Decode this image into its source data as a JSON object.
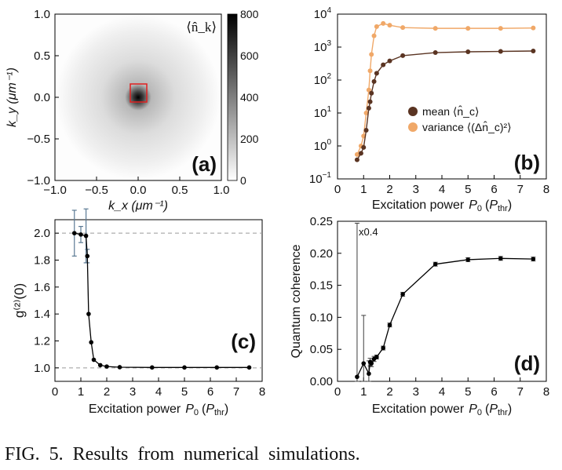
{
  "figure": {
    "caption": "FIG. 5.   Results from numerical simulations."
  },
  "chart_data": [
    {
      "type": "heatmap",
      "panel_label": "(a)",
      "description_label": "⟨n̂_k⟩",
      "xlabel": "k_x (μm⁻¹)",
      "ylabel": "k_y (μm⁻¹)",
      "xlim": [
        -1.0,
        1.0
      ],
      "ylim": [
        -1.0,
        1.0
      ],
      "xticks": [
        "−1.0",
        "−0.5",
        "0.0",
        "0.5",
        "1.0"
      ],
      "yticks": [
        "−1.0",
        "−0.5",
        "0.0",
        "0.5",
        "1.0"
      ],
      "colorbar": {
        "range": [
          0,
          800
        ],
        "ticks": [
          "0",
          "200",
          "400",
          "600",
          "800"
        ]
      },
      "peak_value": 800,
      "highlight_box": {
        "x": [
          -0.1,
          0.1
        ],
        "y": [
          -0.1,
          0.1
        ],
        "color": "#e02020"
      }
    },
    {
      "type": "line",
      "panel_label": "(b)",
      "xlabel_prefix": "Excitation power",
      "xlabel_var": "P",
      "xlabel_sub": "0",
      "xlabel_unit_var": "P",
      "xlabel_unit_sub": "thr",
      "ylabel": "",
      "scale_y": "log",
      "xlim": [
        0,
        8
      ],
      "ylim_exp": [
        -1,
        4
      ],
      "xticks": [
        "0",
        "1",
        "2",
        "3",
        "4",
        "5",
        "6",
        "7",
        "8"
      ],
      "x": [
        0.75,
        0.9,
        1.0,
        1.1,
        1.2,
        1.25,
        1.3,
        1.4,
        1.5,
        1.75,
        2.0,
        2.5,
        3.75,
        5.0,
        6.25,
        7.5
      ],
      "series": [
        {
          "name": "mean ⟨n̂_c⟩",
          "color": "#5a3422",
          "values": [
            0.38,
            0.6,
            0.9,
            3.0,
            14,
            22,
            40,
            90,
            160,
            290,
            380,
            550,
            680,
            720,
            740,
            760
          ]
        },
        {
          "name": "variance ⟨(Δn̂_c)²⟩",
          "color": "#f0a868",
          "values": [
            0.55,
            1.0,
            2.0,
            10,
            50,
            190,
            600,
            2200,
            4200,
            5200,
            4600,
            3900,
            3700,
            3700,
            3700,
            3800
          ]
        }
      ],
      "legend_position": "bottom-right"
    },
    {
      "type": "line",
      "panel_label": "(c)",
      "xlabel_prefix": "Excitation power",
      "xlabel_var": "P",
      "xlabel_sub": "0",
      "xlabel_unit_var": "P",
      "xlabel_unit_sub": "thr",
      "ylabel": "g⁽²⁾(0)",
      "xlim": [
        0,
        8
      ],
      "ylim": [
        0.9,
        2.1
      ],
      "xticks": [
        "0",
        "1",
        "2",
        "3",
        "4",
        "5",
        "6",
        "7",
        "8"
      ],
      "yticks": [
        "1.0",
        "1.2",
        "1.4",
        "1.6",
        "1.8",
        "2.0"
      ],
      "reference_lines": [
        1.0,
        2.0
      ],
      "x": [
        0.75,
        1.0,
        1.2,
        1.25,
        1.3,
        1.4,
        1.5,
        1.75,
        2.0,
        2.5,
        3.75,
        5.0,
        6.25,
        7.5
      ],
      "values": [
        2.0,
        1.99,
        1.98,
        1.83,
        1.4,
        1.19,
        1.06,
        1.02,
        1.01,
        1.005,
        1.003,
        1.003,
        1.003,
        1.003
      ],
      "errors": [
        0.17,
        0.06,
        0.2,
        0.05,
        0.0,
        0.0,
        0.0,
        0.0,
        0.0,
        0.0,
        0.0,
        0.0,
        0.0,
        0.0
      ]
    },
    {
      "type": "line",
      "panel_label": "(d)",
      "xlabel_prefix": "Excitation power",
      "xlabel_var": "P",
      "xlabel_sub": "0",
      "xlabel_unit_var": "P",
      "xlabel_unit_sub": "thr",
      "ylabel": "Quantum coherence",
      "annotation": "x0.4",
      "xlim": [
        0,
        8
      ],
      "ylim": [
        0,
        0.25
      ],
      "xticks": [
        "0",
        "1",
        "2",
        "3",
        "4",
        "5",
        "6",
        "7",
        "8"
      ],
      "yticks": [
        "0.00",
        "0.05",
        "0.10",
        "0.15",
        "0.20",
        "0.25"
      ],
      "x": [
        0.75,
        1.0,
        1.2,
        1.25,
        1.3,
        1.4,
        1.5,
        1.75,
        2.0,
        2.5,
        3.75,
        5.0,
        6.25,
        7.5
      ],
      "values": [
        0.007,
        0.028,
        0.012,
        0.03,
        0.028,
        0.035,
        0.038,
        0.052,
        0.088,
        0.136,
        0.183,
        0.19,
        0.192,
        0.191
      ],
      "errors": [
        0.24,
        0.075,
        0.02,
        0.006,
        0.005,
        0.004,
        0.003,
        0.003,
        0.003,
        0.003,
        0.003,
        0.003,
        0.003,
        0.003
      ]
    }
  ]
}
